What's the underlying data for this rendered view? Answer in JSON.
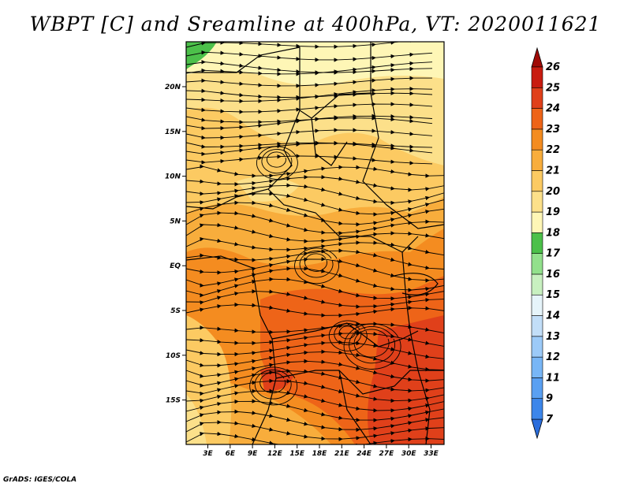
{
  "title": "WBPT [C] and Sreamline at 400hPa, VT: 2020011621",
  "credit": "GrADS: IGES/COLA",
  "map": {
    "lon_ticks": [
      "3E",
      "6E",
      "9E",
      "12E",
      "15E",
      "18E",
      "21E",
      "24E",
      "27E",
      "30E",
      "33E"
    ],
    "lat_ticks": [
      "20N",
      "15N",
      "10N",
      "5N",
      "EQ",
      "5S",
      "10S",
      "15S"
    ]
  },
  "colorbar": {
    "labels": [
      "7",
      "9",
      "11",
      "12",
      "13",
      "14",
      "15",
      "16",
      "17",
      "18",
      "19",
      "20",
      "21",
      "22",
      "23",
      "24",
      "25",
      "26"
    ],
    "colors": [
      "#2a6ddc",
      "#3c86ea",
      "#5aa0f2",
      "#78b6f6",
      "#9ccaf8",
      "#c2def8",
      "#e6f4fa",
      "#c8f0c0",
      "#92e08c",
      "#4cc04a",
      "#fef6b6",
      "#fce08a",
      "#fcca62",
      "#f8ad3c",
      "#f48c20",
      "#ee6418",
      "#e0401a",
      "#c81c10",
      "#a00a06"
    ]
  },
  "chart_data": {
    "type": "heatmap",
    "title": "WBPT [C] and Sreamline at 400hPa, VT: 2020011621",
    "x_ticks": [
      "3E",
      "6E",
      "9E",
      "12E",
      "15E",
      "18E",
      "21E",
      "24E",
      "27E",
      "30E",
      "33E"
    ],
    "y_ticks": [
      "20N",
      "15N",
      "10N",
      "5N",
      "EQ",
      "5S",
      "10S",
      "15S"
    ],
    "colorbar_levels": [
      7,
      9,
      11,
      12,
      13,
      14,
      15,
      16,
      17,
      18,
      19,
      20,
      21,
      22,
      23,
      24,
      25,
      26
    ]
  }
}
